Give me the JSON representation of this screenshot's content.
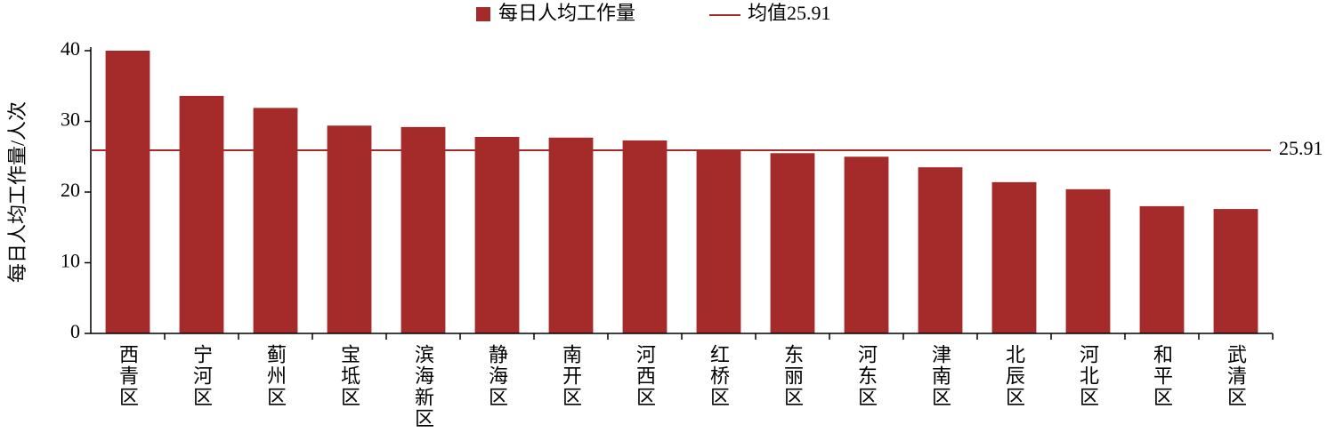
{
  "chart_data": {
    "type": "bar",
    "y_label": "每日人均工作量/人次",
    "categories": [
      "西青区",
      "宁河区",
      "蓟州区",
      "宝坻区",
      "滨海新区",
      "静海区",
      "南开区",
      "河西区",
      "红桥区",
      "东丽区",
      "河东区",
      "津南区",
      "北辰区",
      "河北区",
      "和平区",
      "武清区"
    ],
    "series": [
      {
        "name": "每日人均工作量",
        "color": "#a52a2a",
        "values": [
          40.0,
          33.6,
          31.9,
          29.4,
          29.2,
          27.8,
          27.7,
          27.3,
          25.9,
          25.5,
          25.0,
          23.5,
          21.4,
          20.4,
          18.0,
          17.6
        ]
      }
    ],
    "reference_line": {
      "name": "均值25.91",
      "value": 25.91,
      "color": "#a52a2a"
    },
    "ylim": [
      0,
      40
    ],
    "yticks": [
      0,
      10,
      20,
      30,
      40
    ],
    "grid": false
  }
}
